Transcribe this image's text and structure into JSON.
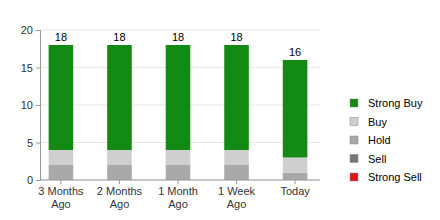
{
  "chart_data": {
    "type": "bar",
    "stacked": true,
    "grid": true,
    "legend": "right",
    "categories": [
      "3 Months Ago",
      "2 Months Ago",
      "1 Month Ago",
      "1 Week Ago",
      "Today"
    ],
    "series": [
      {
        "name": "Strong Buy",
        "color": "#138a13",
        "values": [
          14,
          14,
          14,
          14,
          13
        ]
      },
      {
        "name": "Buy",
        "color": "#cfcfcf",
        "values": [
          2,
          2,
          2,
          2,
          2
        ]
      },
      {
        "name": "Hold",
        "color": "#a9a9a9",
        "values": [
          2,
          2,
          2,
          2,
          1
        ]
      },
      {
        "name": "Sell",
        "color": "#777777",
        "values": [
          0,
          0,
          0,
          0,
          0
        ]
      },
      {
        "name": "Strong Sell",
        "color": "#e0141b",
        "values": [
          0,
          0,
          0,
          0,
          0
        ]
      }
    ],
    "totals": [
      18,
      18,
      18,
      18,
      16
    ],
    "ylim": [
      0,
      20
    ],
    "yticks": [
      0,
      5,
      10,
      15,
      20
    ]
  }
}
